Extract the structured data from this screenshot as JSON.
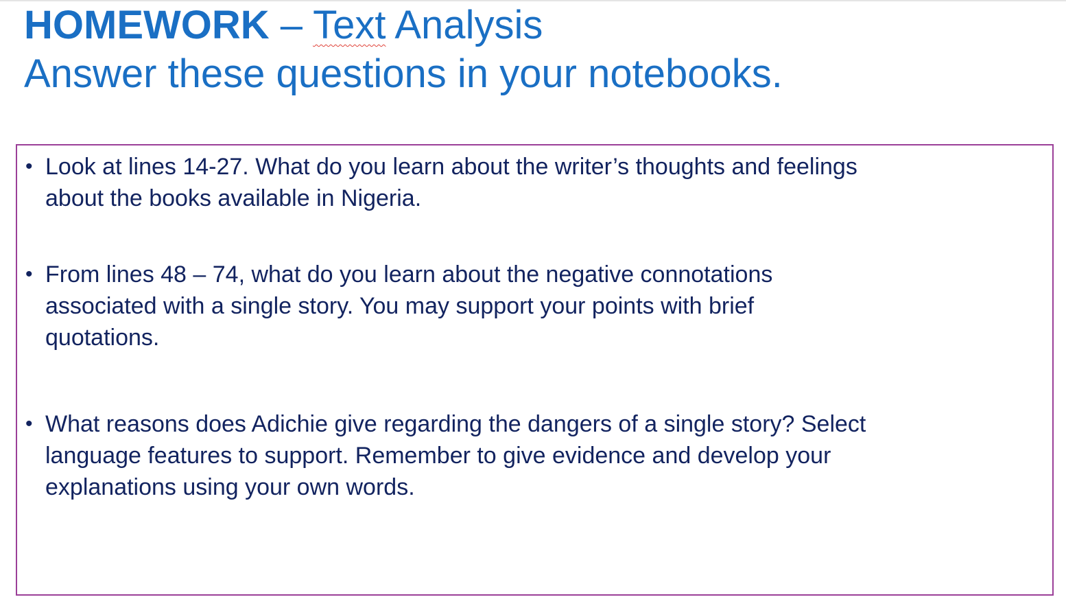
{
  "header": {
    "title_bold": "HOMEWORK",
    "title_dash": " – ",
    "title_text_word": "Text",
    "title_rest": " Analysis",
    "subtitle": "Answer these questions in your notebooks."
  },
  "questions": [
    {
      "bullet": "•",
      "text": "Look at lines 14-27. What do you learn about the writer’s thoughts and feelings\nabout the books available in Nigeria."
    },
    {
      "bullet": "•",
      "text": "From lines 48 – 74, what do you learn about the negative connotations\nassociated with a single story.  You may support your points with brief\nquotations."
    },
    {
      "bullet": "•",
      "text": "What reasons does Adichie give regarding the dangers of a single story? Select\nlanguage features to support. Remember to give evidence and develop your\nexplanations using your own words."
    }
  ],
  "colors": {
    "title": "#1a6fc4",
    "body_text": "#12235f",
    "box_border": "#9b3f98",
    "spellcheck_underline": "#e0423a"
  }
}
